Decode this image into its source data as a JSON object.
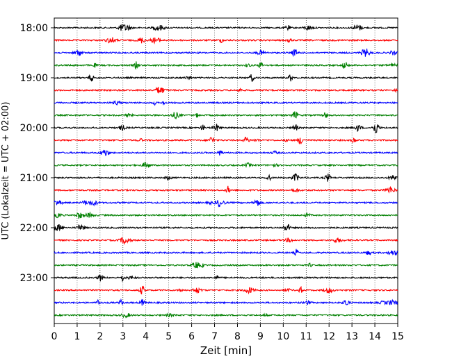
{
  "chart_data": {
    "type": "line",
    "title": "",
    "xlabel": "Zeit  [min]",
    "ylabel": "UTC (Lokalzeit = UTC + 02:00)",
    "xlim": [
      0,
      15
    ],
    "x_ticks": [
      "0",
      "1",
      "2",
      "3",
      "4",
      "5",
      "6",
      "7",
      "8",
      "9",
      "10",
      "11",
      "12",
      "13",
      "14",
      "15"
    ],
    "y_ticks": [
      "18:00",
      "19:00",
      "20:00",
      "21:00",
      "22:00",
      "23:00"
    ],
    "trace_interval_min": 15,
    "start_time": "18:00",
    "trace_count": 24,
    "trace_colors": [
      "#000000",
      "#ff0000",
      "#0000ff",
      "#008000"
    ],
    "grid": {
      "x_vertical_dotted": true
    }
  }
}
